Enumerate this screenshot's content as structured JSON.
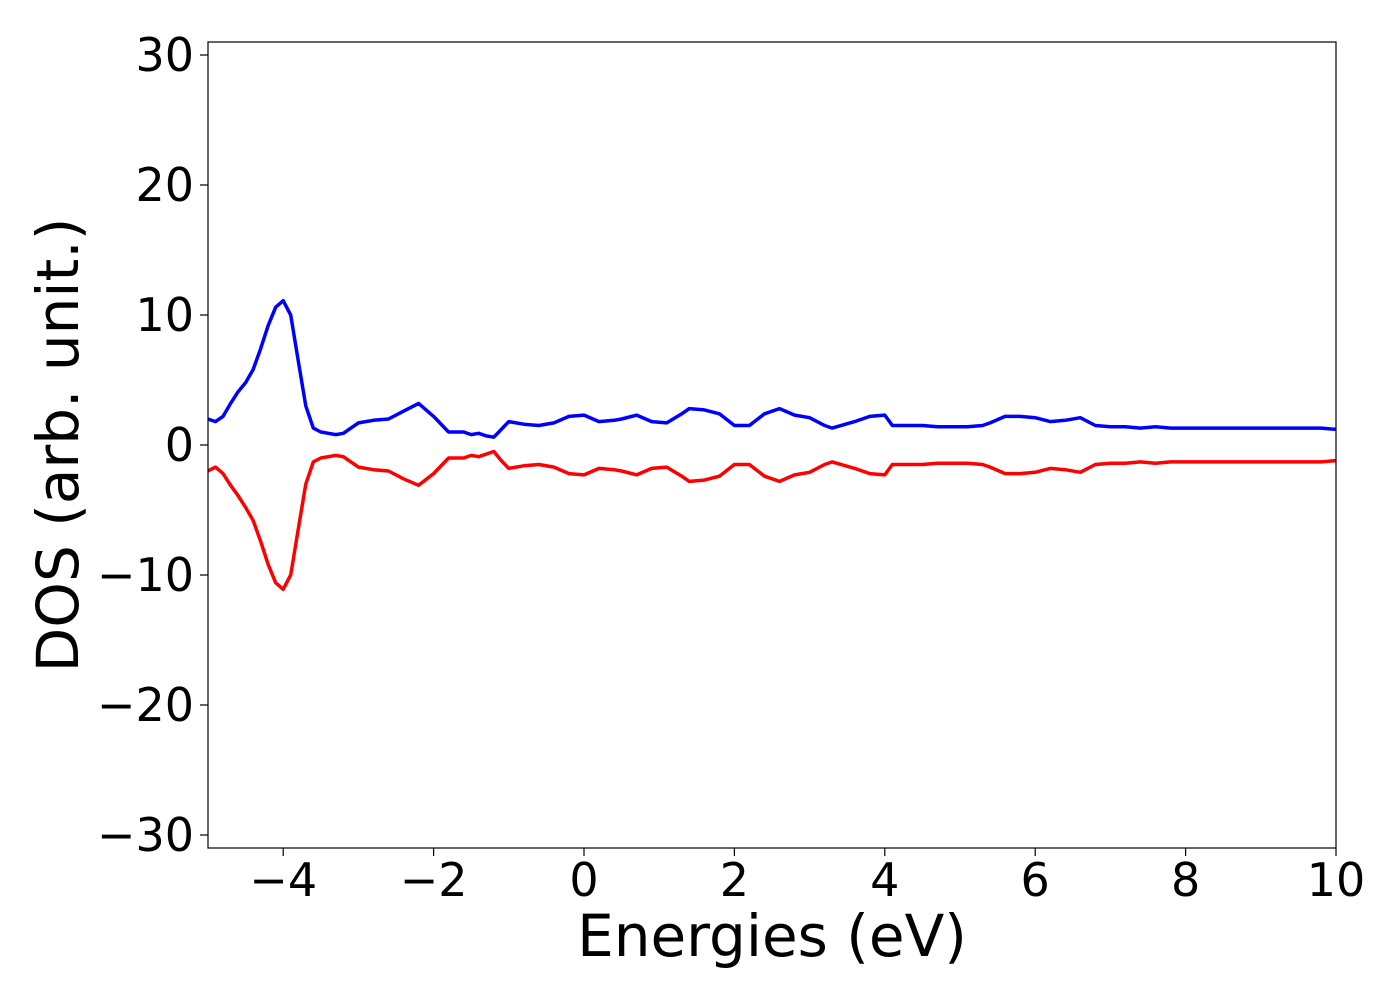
{
  "chart_data": {
    "type": "line",
    "title": "",
    "xlabel": "Energies (eV)",
    "ylabel": "DOS (arb. unit.)",
    "xlim": [
      -5,
      10
    ],
    "ylim": [
      -31,
      31
    ],
    "xticks": [
      -4,
      -2,
      0,
      2,
      4,
      6,
      8,
      10
    ],
    "yticks": [
      30,
      20,
      10,
      0,
      -10,
      -20,
      -30
    ],
    "xtick_labels": [
      "−4",
      "−2",
      "0",
      "2",
      "4",
      "6",
      "8",
      "10"
    ],
    "ytick_labels": [
      "30",
      "20",
      "10",
      "0",
      "−10",
      "−20",
      "−30"
    ],
    "grid": false,
    "legend": "none",
    "series": [
      {
        "color": "#0000ff",
        "x": [
          -5.0,
          -4.9,
          -4.8,
          -4.7,
          -4.6,
          -4.5,
          -4.4,
          -4.3,
          -4.2,
          -4.1,
          -4.0,
          -3.9,
          -3.8,
          -3.7,
          -3.6,
          -3.5,
          -3.4,
          -3.3,
          -3.2,
          -3.1,
          -3.0,
          -2.8,
          -2.6,
          -2.4,
          -2.2,
          -2.0,
          -1.8,
          -1.6,
          -1.5,
          -1.4,
          -1.3,
          -1.2,
          -1.1,
          -1.0,
          -0.8,
          -0.6,
          -0.4,
          -0.2,
          0.0,
          0.2,
          0.4,
          0.5,
          0.7,
          0.9,
          1.1,
          1.3,
          1.4,
          1.6,
          1.8,
          2.0,
          2.2,
          2.4,
          2.6,
          2.8,
          3.0,
          3.2,
          3.3,
          3.6,
          3.8,
          4.0,
          4.1,
          4.3,
          4.5,
          4.7,
          4.9,
          5.1,
          5.3,
          5.4,
          5.6,
          5.8,
          6.0,
          6.2,
          6.4,
          6.6,
          6.8,
          7.0,
          7.2,
          7.4,
          7.6,
          7.8,
          8.0,
          8.2,
          8.4,
          8.6,
          8.8,
          9.0,
          9.2,
          9.4,
          9.6,
          9.8,
          10.0
        ],
        "y": [
          2.0,
          1.8,
          2.2,
          3.2,
          4.1,
          4.8,
          5.8,
          7.4,
          9.2,
          10.6,
          11.1,
          10.0,
          6.5,
          3.0,
          1.3,
          1.0,
          0.9,
          0.8,
          0.9,
          1.3,
          1.7,
          1.9,
          2.0,
          2.6,
          3.2,
          2.2,
          1.0,
          1.0,
          0.8,
          0.9,
          0.7,
          0.6,
          1.2,
          1.8,
          1.6,
          1.5,
          1.7,
          2.2,
          2.3,
          1.8,
          1.9,
          2.0,
          2.3,
          1.8,
          1.7,
          2.4,
          2.8,
          2.7,
          2.4,
          1.5,
          1.5,
          2.4,
          2.8,
          2.3,
          2.1,
          1.5,
          1.3,
          1.8,
          2.2,
          2.3,
          1.5,
          1.5,
          1.5,
          1.4,
          1.4,
          1.4,
          1.5,
          1.7,
          2.2,
          2.2,
          2.1,
          1.8,
          1.9,
          2.1,
          1.5,
          1.4,
          1.4,
          1.3,
          1.4,
          1.3,
          1.3,
          1.3,
          1.3,
          1.3,
          1.3,
          1.3,
          1.3,
          1.3,
          1.3,
          1.3,
          1.2
        ]
      },
      {
        "color": "#ff0000",
        "x": [
          -5.0,
          -4.9,
          -4.8,
          -4.7,
          -4.6,
          -4.5,
          -4.4,
          -4.3,
          -4.2,
          -4.1,
          -4.0,
          -3.9,
          -3.8,
          -3.7,
          -3.6,
          -3.5,
          -3.4,
          -3.3,
          -3.2,
          -3.1,
          -3.0,
          -2.8,
          -2.6,
          -2.4,
          -2.2,
          -2.0,
          -1.8,
          -1.6,
          -1.5,
          -1.4,
          -1.3,
          -1.2,
          -1.1,
          -1.0,
          -0.8,
          -0.6,
          -0.4,
          -0.2,
          0.0,
          0.2,
          0.4,
          0.5,
          0.7,
          0.9,
          1.1,
          1.3,
          1.4,
          1.6,
          1.8,
          2.0,
          2.2,
          2.4,
          2.6,
          2.8,
          3.0,
          3.2,
          3.3,
          3.6,
          3.8,
          4.0,
          4.1,
          4.3,
          4.5,
          4.7,
          4.9,
          5.1,
          5.3,
          5.4,
          5.6,
          5.8,
          6.0,
          6.2,
          6.4,
          6.6,
          6.8,
          7.0,
          7.2,
          7.4,
          7.6,
          7.8,
          8.0,
          8.2,
          8.4,
          8.6,
          8.8,
          9.0,
          9.2,
          9.4,
          9.6,
          9.8,
          10.0
        ],
        "y": [
          -2.0,
          -1.7,
          -2.2,
          -3.1,
          -3.9,
          -4.8,
          -5.8,
          -7.4,
          -9.2,
          -10.6,
          -11.1,
          -10.0,
          -6.5,
          -3.0,
          -1.3,
          -1.0,
          -0.9,
          -0.8,
          -0.9,
          -1.3,
          -1.7,
          -1.9,
          -2.0,
          -2.6,
          -3.1,
          -2.2,
          -1.0,
          -1.0,
          -0.8,
          -0.9,
          -0.7,
          -0.5,
          -1.2,
          -1.8,
          -1.6,
          -1.5,
          -1.7,
          -2.2,
          -2.3,
          -1.8,
          -1.9,
          -2.0,
          -2.3,
          -1.8,
          -1.7,
          -2.4,
          -2.8,
          -2.7,
          -2.4,
          -1.5,
          -1.5,
          -2.4,
          -2.8,
          -2.3,
          -2.1,
          -1.5,
          -1.3,
          -1.8,
          -2.2,
          -2.3,
          -1.5,
          -1.5,
          -1.5,
          -1.4,
          -1.4,
          -1.4,
          -1.5,
          -1.7,
          -2.2,
          -2.2,
          -2.1,
          -1.8,
          -1.9,
          -2.1,
          -1.5,
          -1.4,
          -1.4,
          -1.3,
          -1.4,
          -1.3,
          -1.3,
          -1.3,
          -1.3,
          -1.3,
          -1.3,
          -1.3,
          -1.3,
          -1.3,
          -1.3,
          -1.3,
          -1.2
        ]
      }
    ]
  }
}
